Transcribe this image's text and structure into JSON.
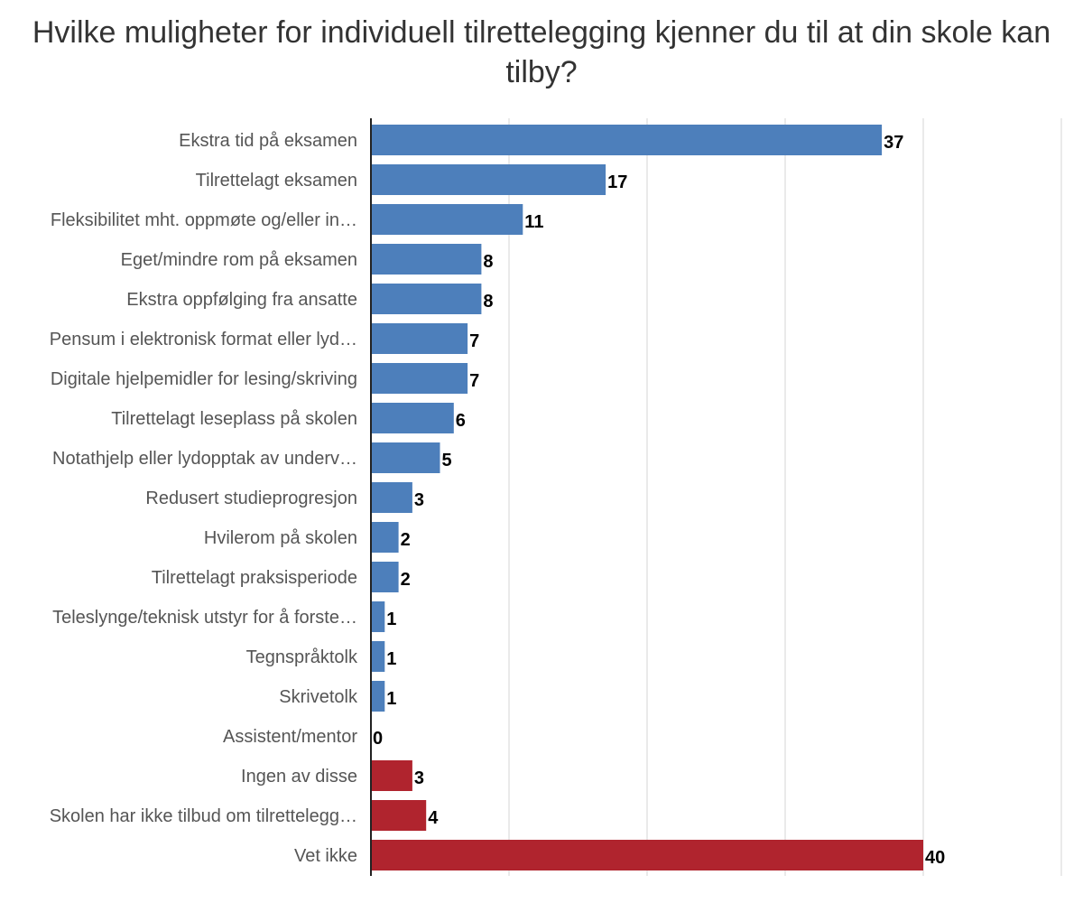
{
  "chart_data": {
    "type": "bar",
    "orientation": "horizontal",
    "title": "Hvilke muligheter for individuell tilrettelegging kjenner du til at din skole kan tilby?",
    "xlim": [
      0,
      50
    ],
    "grid": true,
    "colors": {
      "primary": "#4d7fbb",
      "other": "#b0242e"
    },
    "bars": [
      {
        "label": "Ekstra tid på eksamen",
        "value": 37,
        "group": "primary"
      },
      {
        "label": "Tilrettelagt eksamen",
        "value": 17,
        "group": "primary"
      },
      {
        "label": "Fleksibilitet mht. oppmøte og/eller in…",
        "value": 11,
        "group": "primary"
      },
      {
        "label": "Eget/mindre rom på eksamen",
        "value": 8,
        "group": "primary"
      },
      {
        "label": "Ekstra oppfølging fra ansatte",
        "value": 8,
        "group": "primary"
      },
      {
        "label": "Pensum i elektronisk format eller lyd…",
        "value": 7,
        "group": "primary"
      },
      {
        "label": "Digitale hjelpemidler for lesing/skriving",
        "value": 7,
        "group": "primary"
      },
      {
        "label": "Tilrettelagt leseplass på skolen",
        "value": 6,
        "group": "primary"
      },
      {
        "label": "Notathjelp eller lydopptak av underv…",
        "value": 5,
        "group": "primary"
      },
      {
        "label": "Redusert studieprogresjon",
        "value": 3,
        "group": "primary"
      },
      {
        "label": "Hvilerom på skolen",
        "value": 2,
        "group": "primary"
      },
      {
        "label": "Tilrettelagt praksisperiode",
        "value": 2,
        "group": "primary"
      },
      {
        "label": "Teleslynge/teknisk utstyr for å forste…",
        "value": 1,
        "group": "primary"
      },
      {
        "label": "Tegnspråktolk",
        "value": 1,
        "group": "primary"
      },
      {
        "label": "Skrivetolk",
        "value": 1,
        "group": "primary"
      },
      {
        "label": "Assistent/mentor",
        "value": 0,
        "group": "primary"
      },
      {
        "label": "Ingen av disse",
        "value": 3,
        "group": "other"
      },
      {
        "label": "Skolen har ikke tilbud om tilrettelegg…",
        "value": 4,
        "group": "other"
      },
      {
        "label": "Vet ikke",
        "value": 40,
        "group": "other"
      }
    ]
  }
}
